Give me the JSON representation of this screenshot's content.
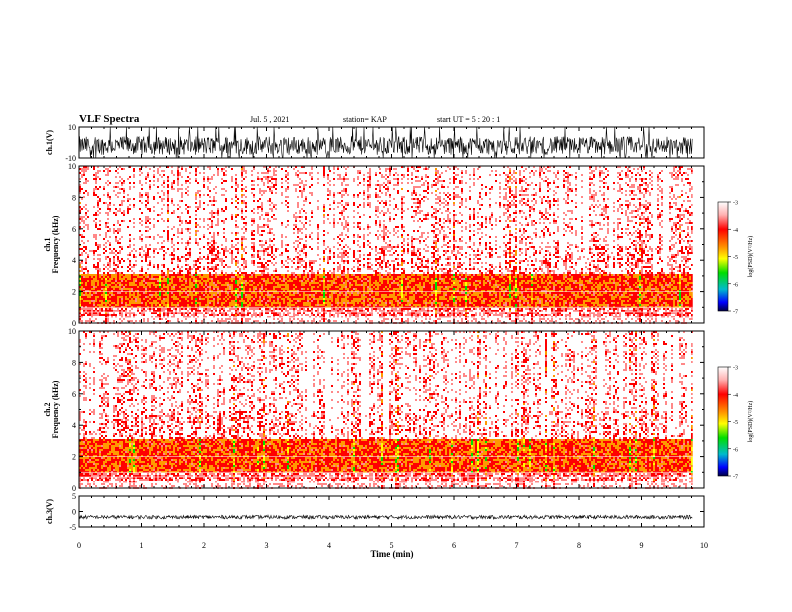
{
  "header": {
    "title": "VLF Spectra",
    "date": "Jul. 5 , 2021",
    "station": "station= KAP",
    "start": "start UT = 5 : 20 : 1"
  },
  "chart_data": [
    {
      "type": "line",
      "panel": "ch1-waveform",
      "ylabel": "ch.1(V)",
      "ylim": [
        -10,
        10
      ],
      "yticks": [
        10,
        -10
      ],
      "xlim": [
        0,
        10
      ],
      "data_extent_min": 9.82,
      "description_values": {
        "typical_low": -8,
        "typical_high": 4,
        "clip_high": 10
      }
    },
    {
      "type": "heatmap",
      "panel": "ch1-spectrogram",
      "ylabel": "ch.1 Frequency (kHz)",
      "ylim": [
        0,
        10
      ],
      "yticks": [
        0,
        2,
        4,
        6,
        8,
        10
      ],
      "xlim": [
        0,
        10
      ],
      "data_extent_min": 9.82,
      "colorbar": {
        "label": "log(PSD)(V²/Hz)",
        "range": [
          -7,
          -3
        ],
        "ticks": [
          "-3",
          "-4",
          "-5",
          "-6",
          "-7"
        ]
      },
      "bands": [
        {
          "from_khz": 0,
          "to_khz": 0.5,
          "level": -3.2
        },
        {
          "from_khz": 0.5,
          "to_khz": 1.0,
          "level": -3.6
        },
        {
          "from_khz": 1.0,
          "to_khz": 3.2,
          "level": -4.4
        },
        {
          "from_khz": 3.2,
          "to_khz": 5.0,
          "level": -3.8
        },
        {
          "from_khz": 5.0,
          "to_khz": 10.0,
          "level": -3.5
        }
      ]
    },
    {
      "type": "heatmap",
      "panel": "ch2-spectrogram",
      "ylabel": "ch.2 Frequency (kHz)",
      "ylim": [
        0,
        10
      ],
      "yticks": [
        0,
        2,
        4,
        6,
        8,
        10
      ],
      "xlim": [
        0,
        10
      ],
      "data_extent_min": 9.82,
      "colorbar": {
        "label": "log(PSD)(V²/Hz)",
        "range": [
          -7,
          -3
        ],
        "ticks": [
          "-3",
          "-4",
          "-5",
          "-6",
          "-7"
        ]
      },
      "bands": [
        {
          "from_khz": 0,
          "to_khz": 0.5,
          "level": -3.2
        },
        {
          "from_khz": 0.5,
          "to_khz": 1.0,
          "level": -3.6
        },
        {
          "from_khz": 1.0,
          "to_khz": 3.2,
          "level": -4.4
        },
        {
          "from_khz": 3.2,
          "to_khz": 5.0,
          "level": -3.8
        },
        {
          "from_khz": 5.0,
          "to_khz": 10.0,
          "level": -3.5
        }
      ]
    },
    {
      "type": "line",
      "panel": "ch3-waveform",
      "ylabel": "ch.3(V)",
      "ylim": [
        -5,
        5
      ],
      "yticks": [
        5,
        0,
        -5
      ],
      "xlim": [
        0,
        10
      ],
      "data_extent_min": 9.82,
      "description_values": {
        "center": -1.8,
        "amplitude": 0.6
      }
    }
  ],
  "xaxis": {
    "label": "Time (min)",
    "ticks": [
      "0",
      "1",
      "2",
      "3",
      "4",
      "5",
      "6",
      "7",
      "8",
      "9",
      "10"
    ]
  },
  "colors": {
    "waveform": "#000000",
    "psd_high": "#ff0000",
    "psd_mid": "#ffff00",
    "psd_low": "#00cc00",
    "psd_min": "#0000ff"
  }
}
